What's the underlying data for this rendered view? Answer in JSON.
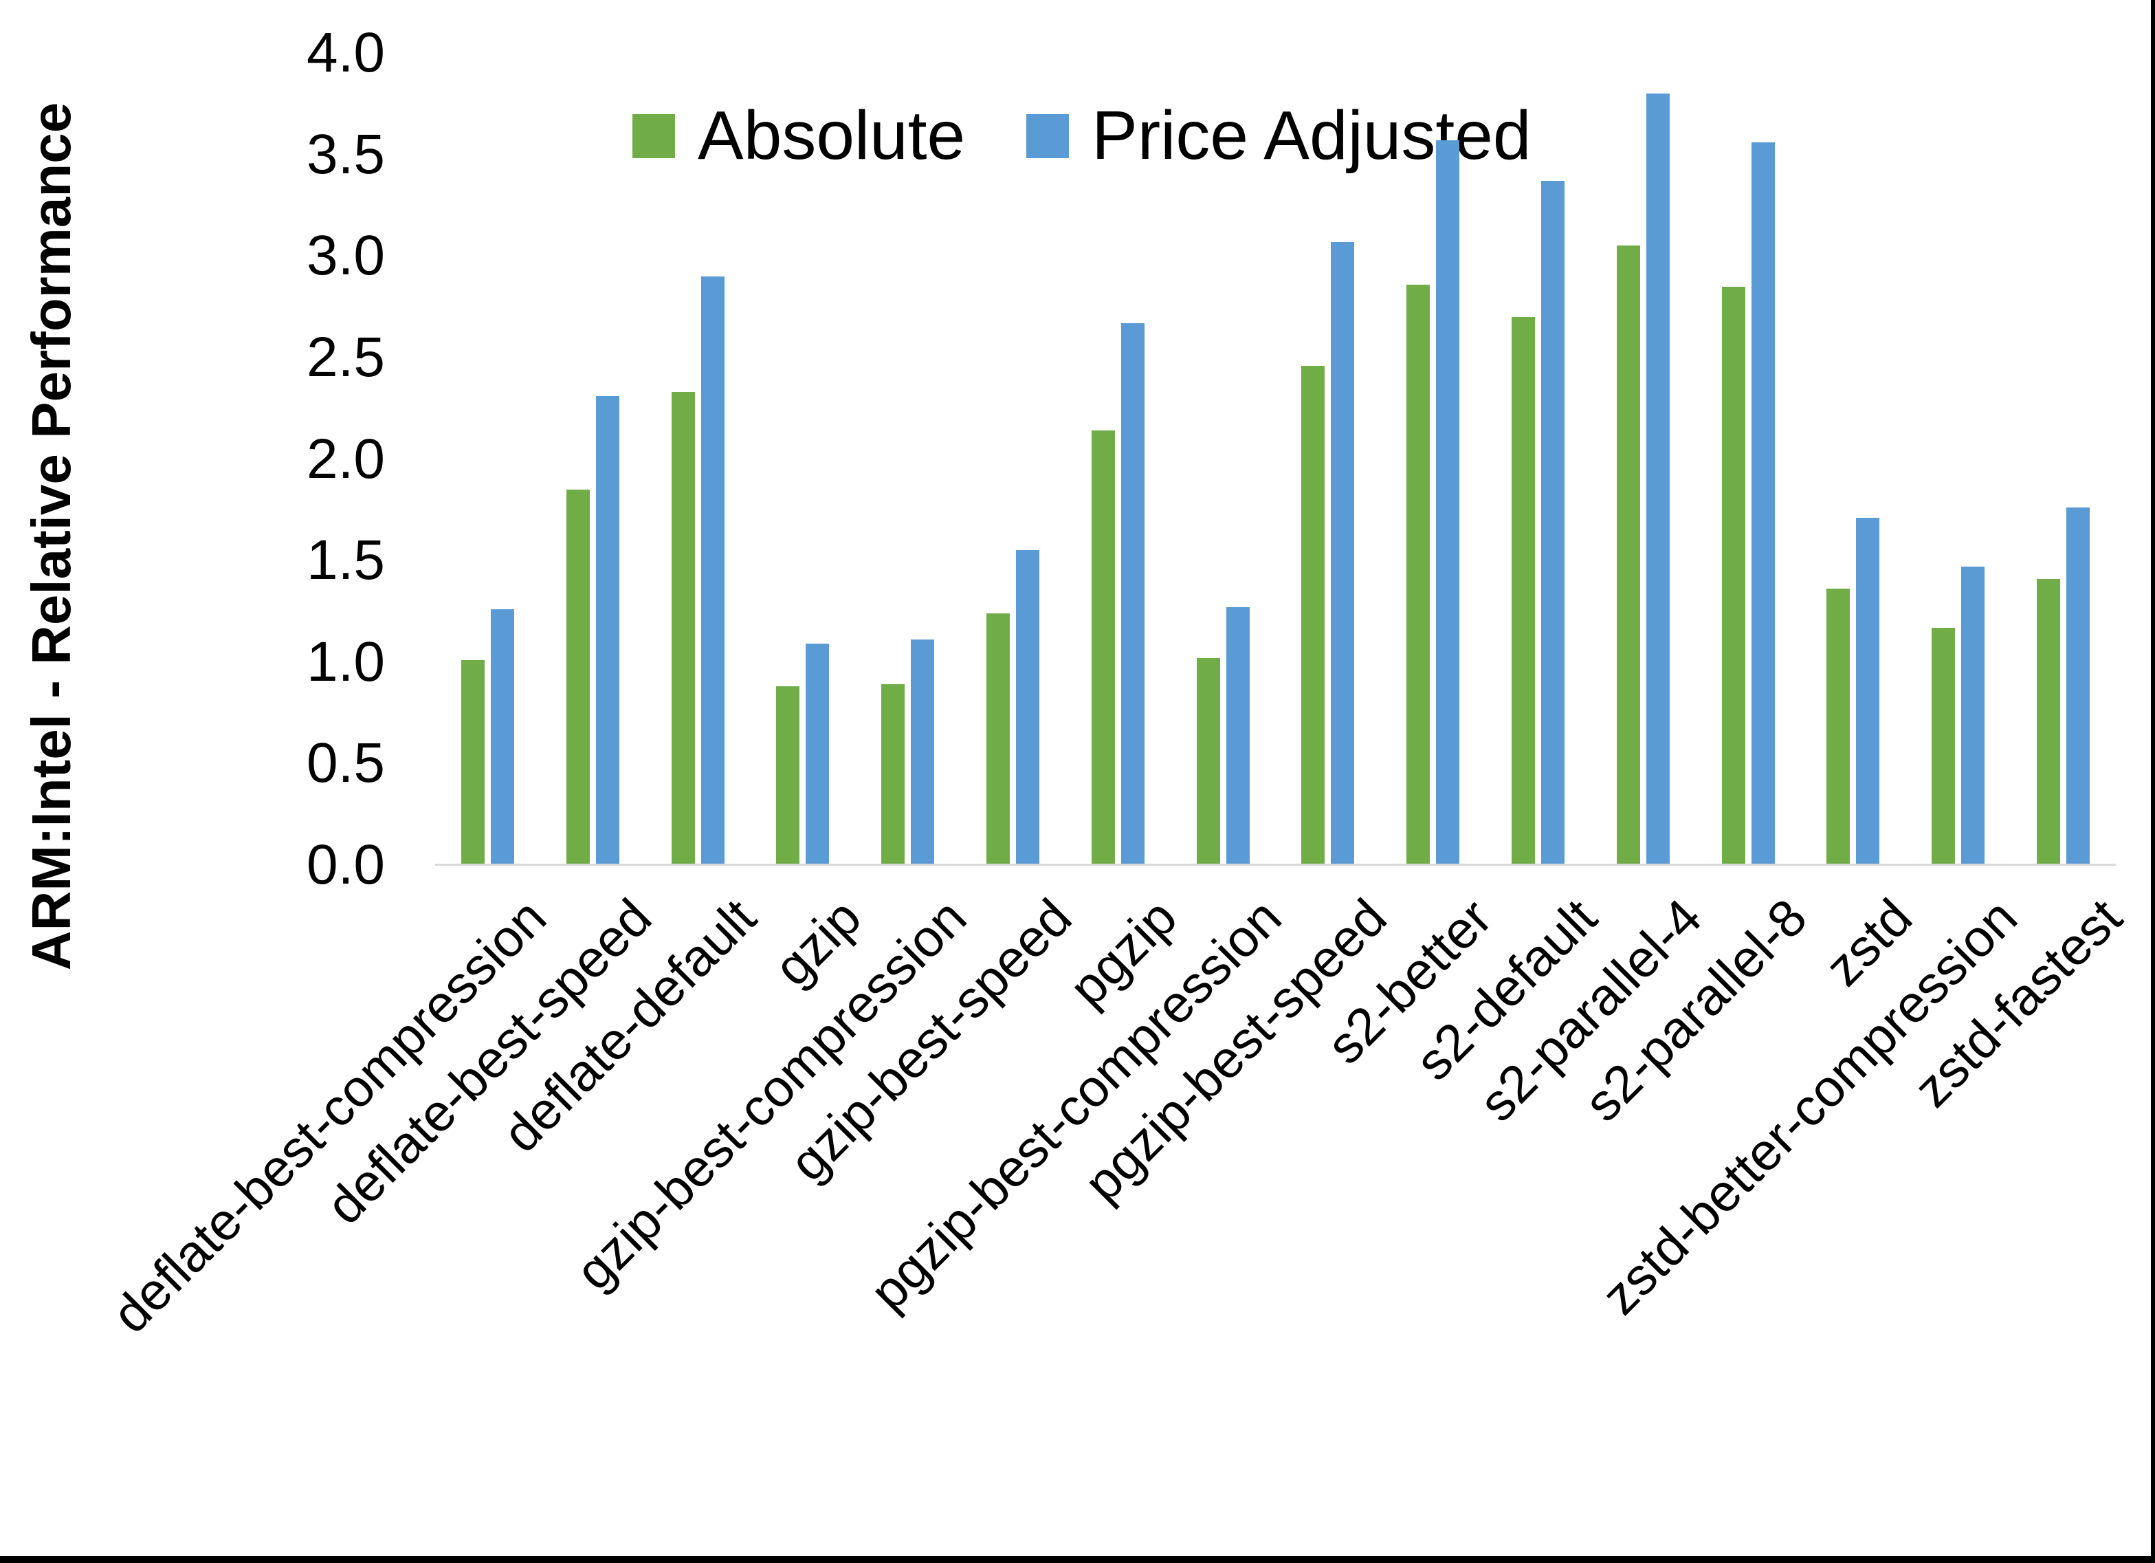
{
  "chart_data": {
    "type": "bar",
    "title": "",
    "xlabel": "",
    "ylabel": "ARM:Intel - Relative Performance",
    "ylim": [
      0.0,
      4.0
    ],
    "ytick_step": 0.5,
    "ytick_labels": [
      "0.0",
      "0.5",
      "1.0",
      "1.5",
      "2.0",
      "2.5",
      "3.0",
      "3.5",
      "4.0"
    ],
    "grid": false,
    "legend_position": "top-center",
    "categories": [
      "deflate-best-compression",
      "deflate-best-speed",
      "deflate-default",
      "gzip",
      "gzip-best-compression",
      "gzip-best-speed",
      "pgzip",
      "pgzip-best-compression",
      "pgzip-best-speed",
      "s2-better",
      "s2-default",
      "s2-parallel-4",
      "s2-parallel-8",
      "zstd",
      "zstd-better-compression",
      "zstd-fastest"
    ],
    "series": [
      {
        "name": "Absolute",
        "color": "#70AD47",
        "values": [
          1.01,
          1.85,
          2.33,
          0.88,
          0.89,
          1.24,
          2.14,
          1.02,
          2.46,
          2.86,
          2.7,
          3.05,
          2.85,
          1.36,
          1.17,
          1.41
        ]
      },
      {
        "name": "Price Adjusted",
        "color": "#5B9BD5",
        "values": [
          1.26,
          2.31,
          2.9,
          1.09,
          1.11,
          1.55,
          2.67,
          1.27,
          3.07,
          3.57,
          3.37,
          3.8,
          3.56,
          1.71,
          1.47,
          1.76
        ]
      }
    ],
    "colors": {
      "axis_line": "#D9D9D9",
      "text": "#000000",
      "background": "#FFFFFF",
      "screen_edge": "#000000"
    }
  }
}
